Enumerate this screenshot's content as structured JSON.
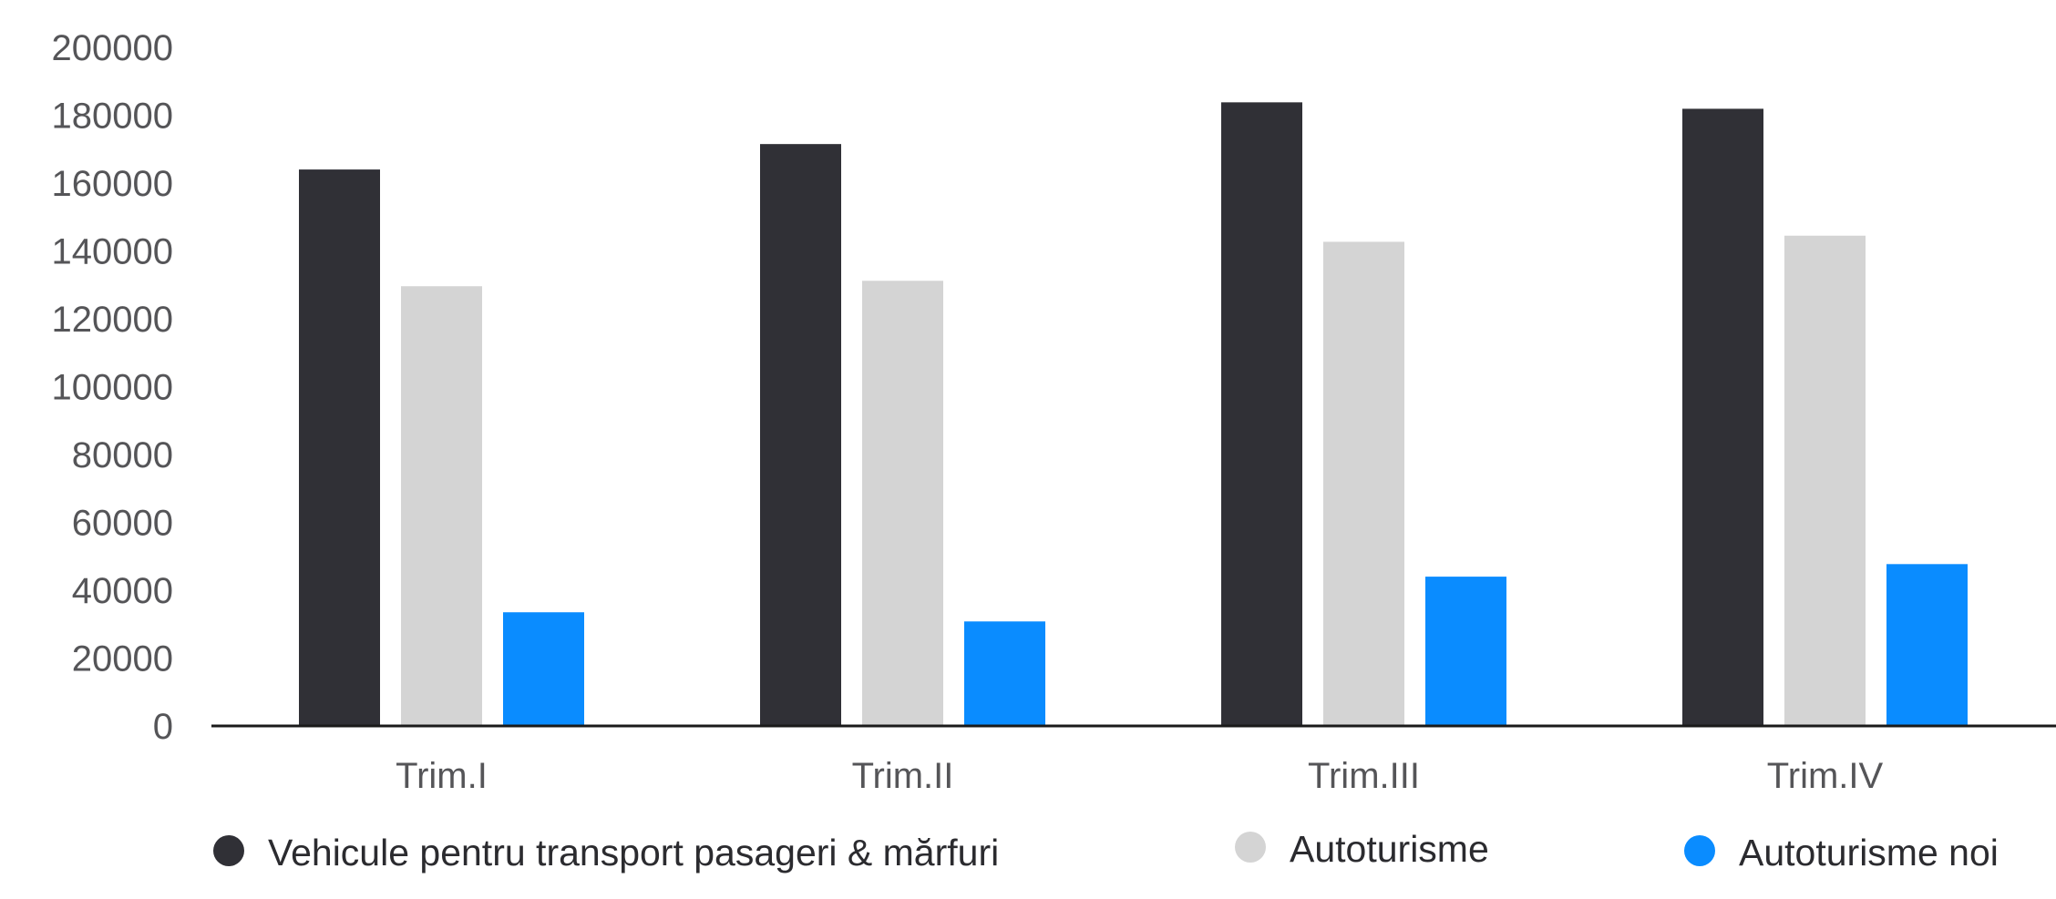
{
  "chart_data": {
    "type": "bar",
    "categories": [
      "Trim.I",
      "Trim.II",
      "Trim.III",
      "Trim.IV"
    ],
    "series": [
      {
        "name": "Vehicule pentru transport pasageri & mărfuri",
        "color": "#303036",
        "values": [
          164000,
          171500,
          183800,
          181900
        ]
      },
      {
        "name": "Autoturisme",
        "color": "#d4d4d4",
        "values": [
          129600,
          131200,
          142700,
          144500
        ]
      },
      {
        "name": "Autoturisme noi",
        "color": "#0a8cff",
        "values": [
          33500,
          30800,
          44000,
          47700
        ]
      }
    ],
    "ylim": [
      0,
      200000
    ],
    "yticks": [
      "0",
      "20000",
      "40000",
      "60000",
      "80000",
      "100000",
      "120000",
      "140000",
      "160000",
      "180000",
      "200000"
    ],
    "grid": false,
    "legend_position": "bottom",
    "title": "",
    "xlabel": "",
    "ylabel": ""
  }
}
